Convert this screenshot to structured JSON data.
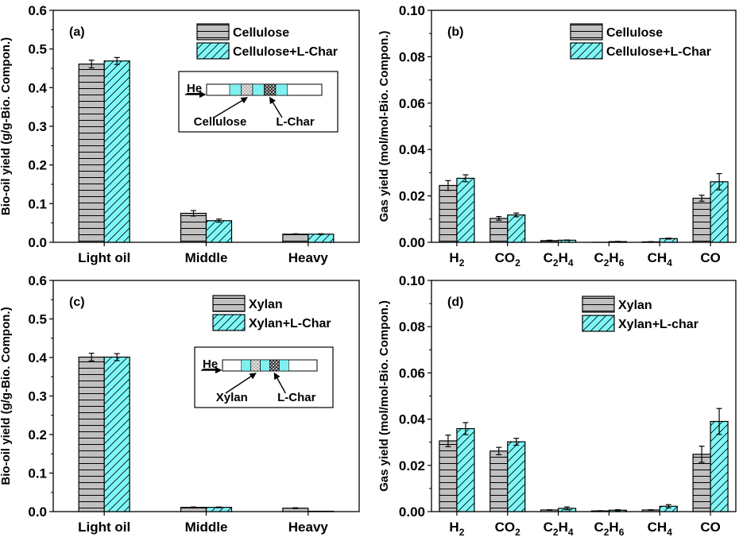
{
  "figure": {
    "colors": {
      "gray_bar": "#c0c0c0",
      "cyan_bar": "#7ff7f7",
      "axis": "#000000",
      "inset_cyan": "#7ff0f0"
    }
  },
  "chart_data": [
    {
      "id": "a",
      "type": "bar",
      "panel_label": "(a)",
      "ylabel": "Bio-oil yield (g/g-Bio. Compon.)",
      "xlabel": "",
      "ylim": [
        0,
        0.6
      ],
      "yticks": [
        0.0,
        0.1,
        0.2,
        0.3,
        0.4,
        0.5,
        0.6
      ],
      "ytick_labels": [
        "0.0",
        "0.1",
        "0.2",
        "0.3",
        "0.4",
        "0.5",
        "0.6"
      ],
      "categories": [
        "Light oil",
        "Middle",
        "Heavy"
      ],
      "category_labels": [
        [
          [
            "Light oil",
            ""
          ]
        ],
        [
          [
            "Middle",
            ""
          ]
        ],
        [
          [
            "Heavy",
            ""
          ]
        ]
      ],
      "series": [
        {
          "name": "Cellulose",
          "pattern": "horizontal",
          "values": [
            0.461,
            0.075,
            0.021
          ],
          "errors": [
            0.01,
            0.007,
            0.001
          ]
        },
        {
          "name": "Cellulose+L-Char",
          "pattern": "diagonal",
          "values": [
            0.469,
            0.056,
            0.021
          ],
          "errors": [
            0.009,
            0.004,
            0.001
          ]
        }
      ],
      "legend": [
        "Cellulose",
        "Cellulose+L-Char"
      ],
      "legend_position": "top-right",
      "inset": {
        "flow_label": "He",
        "left_label": "Cellulose",
        "right_label": "L-Char"
      }
    },
    {
      "id": "b",
      "type": "bar",
      "panel_label": "(b)",
      "ylabel": "Gas yield (mol/mol-Bio. Compon.)",
      "xlabel": "",
      "ylim": [
        0,
        0.1
      ],
      "yticks": [
        0.0,
        0.02,
        0.04,
        0.06,
        0.08,
        0.1
      ],
      "ytick_labels": [
        "0.00",
        "0.02",
        "0.04",
        "0.06",
        "0.08",
        "0.10"
      ],
      "categories": [
        "H2",
        "CO2",
        "C2H4",
        "C2H6",
        "CH4",
        "CO"
      ],
      "category_labels": [
        [
          [
            "H",
            ""
          ],
          [
            "2",
            "sub"
          ]
        ],
        [
          [
            "CO",
            ""
          ],
          [
            "2",
            "sub"
          ]
        ],
        [
          [
            "C",
            ""
          ],
          [
            "2",
            "sub"
          ],
          [
            "H",
            ""
          ],
          [
            "4",
            "sub"
          ]
        ],
        [
          [
            "C",
            ""
          ],
          [
            "2",
            "sub"
          ],
          [
            "H",
            ""
          ],
          [
            "6",
            "sub"
          ]
        ],
        [
          [
            "CH",
            ""
          ],
          [
            "4",
            "sub"
          ]
        ],
        [
          [
            "CO",
            ""
          ]
        ]
      ],
      "series": [
        {
          "name": "Cellulose",
          "pattern": "horizontal",
          "values": [
            0.0245,
            0.0103,
            0.0007,
            0.0,
            0.0002,
            0.019
          ],
          "errors": [
            0.0021,
            0.0008,
            0.0002,
            0.0,
            0.0001,
            0.0013
          ]
        },
        {
          "name": "Cellulose+L-Char",
          "pattern": "diagonal",
          "values": [
            0.0276,
            0.0118,
            0.0009,
            0.0003,
            0.0016,
            0.0261
          ],
          "errors": [
            0.0015,
            0.0008,
            0.0001,
            0.0001,
            0.0002,
            0.0035
          ]
        }
      ],
      "legend": [
        "Cellulose",
        "Cellulose+L-Char"
      ],
      "legend_position": "top-right"
    },
    {
      "id": "c",
      "type": "bar",
      "panel_label": "(c)",
      "ylabel": "Bio-oil yield (g/g-Bio. Compon.)",
      "xlabel": "",
      "ylim": [
        0,
        0.6
      ],
      "yticks": [
        0.0,
        0.1,
        0.2,
        0.3,
        0.4,
        0.5,
        0.6
      ],
      "ytick_labels": [
        "0.0",
        "0.1",
        "0.2",
        "0.3",
        "0.4",
        "0.5",
        "0.6"
      ],
      "categories": [
        "Light oil",
        "Middle",
        "Heavy"
      ],
      "category_labels": [
        [
          [
            "Light oil",
            ""
          ]
        ],
        [
          [
            "Middle",
            ""
          ]
        ],
        [
          [
            "Heavy",
            ""
          ]
        ]
      ],
      "series": [
        {
          "name": "Xylan",
          "pattern": "horizontal",
          "values": [
            0.401,
            0.011,
            0.009
          ],
          "errors": [
            0.01,
            0.001,
            0.001
          ]
        },
        {
          "name": "Xylan+L-Char",
          "pattern": "diagonal",
          "values": [
            0.401,
            0.011,
            0.001
          ],
          "errors": [
            0.009,
            0.001,
            0.0
          ]
        }
      ],
      "legend": [
        "Xylan",
        "Xylan+L-Char"
      ],
      "legend_position": "top-right",
      "inset": {
        "flow_label": "He",
        "left_label": "Xylan",
        "right_label": "L-Char"
      }
    },
    {
      "id": "d",
      "type": "bar",
      "panel_label": "(d)",
      "ylabel": "Gas yield (mol/mol-Bio. Compon.)",
      "xlabel": "",
      "ylim": [
        0,
        0.1
      ],
      "yticks": [
        0.0,
        0.02,
        0.04,
        0.06,
        0.08,
        0.1
      ],
      "ytick_labels": [
        "0.00",
        "0.02",
        "0.04",
        "0.06",
        "0.08",
        "0.10"
      ],
      "categories": [
        "H2",
        "CO2",
        "C2H4",
        "C2H6",
        "CH4",
        "CO"
      ],
      "category_labels": [
        [
          [
            "H",
            ""
          ],
          [
            "2",
            "sub"
          ]
        ],
        [
          [
            "CO",
            ""
          ],
          [
            "2",
            "sub"
          ]
        ],
        [
          [
            "C",
            ""
          ],
          [
            "2",
            "sub"
          ],
          [
            "H",
            ""
          ],
          [
            "4",
            "sub"
          ]
        ],
        [
          [
            "C",
            ""
          ],
          [
            "2",
            "sub"
          ],
          [
            "H",
            ""
          ],
          [
            "6",
            "sub"
          ]
        ],
        [
          [
            "CH",
            ""
          ],
          [
            "4",
            "sub"
          ]
        ],
        [
          [
            "CO",
            ""
          ]
        ]
      ],
      "series": [
        {
          "name": "Xylan",
          "pattern": "horizontal",
          "values": [
            0.0306,
            0.0262,
            0.0007,
            0.0003,
            0.0007,
            0.0248
          ],
          "errors": [
            0.0025,
            0.0016,
            0.0001,
            0.0001,
            0.0001,
            0.0035
          ]
        },
        {
          "name": "Xylan+L-char",
          "pattern": "diagonal",
          "values": [
            0.0359,
            0.0302,
            0.0014,
            0.0006,
            0.0023,
            0.039
          ],
          "errors": [
            0.0026,
            0.0015,
            0.0006,
            0.0002,
            0.0007,
            0.0056
          ]
        }
      ],
      "legend": [
        "Xylan",
        "Xylan+L-char"
      ],
      "legend_position": "top-right"
    }
  ]
}
